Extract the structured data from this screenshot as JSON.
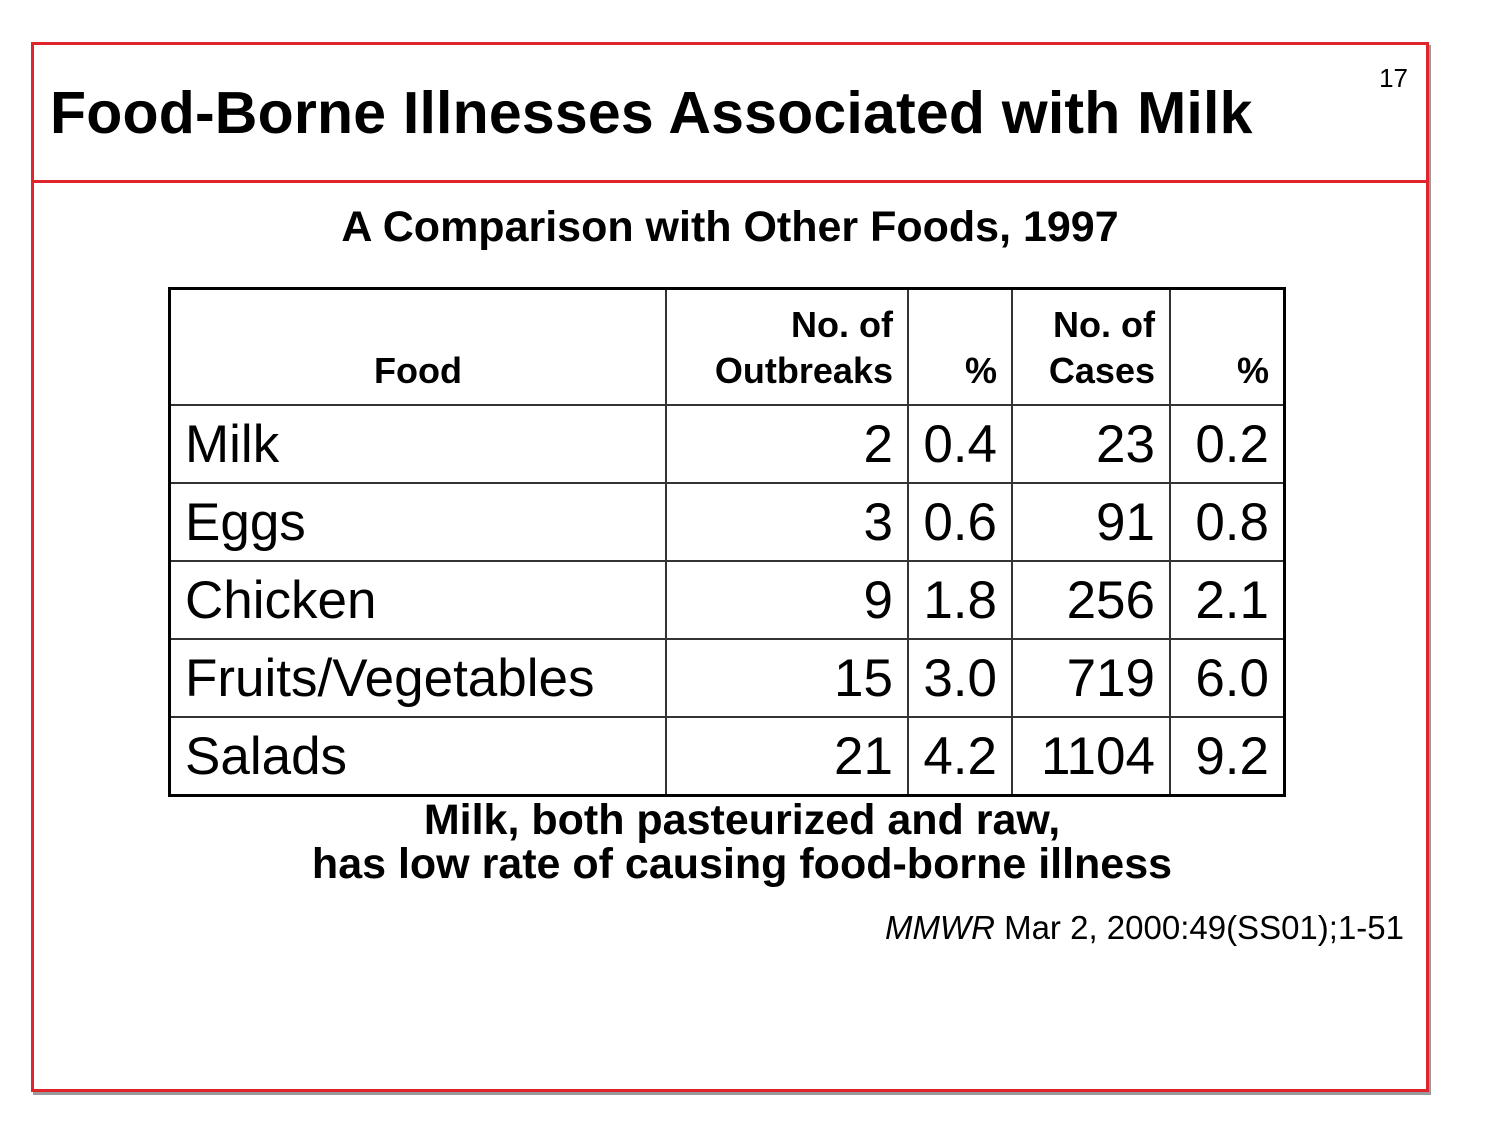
{
  "slide": {
    "title": "Food-Borne Illnesses Associated with Milk",
    "number": "17",
    "subtitle": "A Comparison with Other Foods, 1997"
  },
  "table": {
    "headers": {
      "food": "Food",
      "outbreaks_line1": "No. of",
      "outbreaks_line2": "Outbreaks",
      "pct1": "%",
      "cases_line1": "No. of",
      "cases_line2": "Cases",
      "pct2": "%"
    },
    "rows": [
      {
        "food": "Milk",
        "outbreaks": "2",
        "outbreaks_pct": "0.4",
        "cases": "23",
        "cases_pct": "0.2"
      },
      {
        "food": "Eggs",
        "outbreaks": "3",
        "outbreaks_pct": "0.6",
        "cases": "91",
        "cases_pct": "0.8"
      },
      {
        "food": "Chicken",
        "outbreaks": "9",
        "outbreaks_pct": "1.8",
        "cases": "256",
        "cases_pct": "2.1"
      },
      {
        "food": "Fruits/Vegetables",
        "outbreaks": "15",
        "outbreaks_pct": "3.0",
        "cases": "719",
        "cases_pct": "6.0"
      },
      {
        "food": "Salads",
        "outbreaks": "21",
        "outbreaks_pct": "4.2",
        "cases": "1104",
        "cases_pct": "9.2"
      }
    ]
  },
  "conclusion": {
    "line1": "Milk, both pasteurized and raw,",
    "line2": "has low rate of causing food-borne illness"
  },
  "citation": {
    "journal": "MMWR",
    "rest": " Mar 2, 2000:49(SS01);1-51"
  },
  "colors": {
    "border": "#e0242c",
    "text": "#000000"
  }
}
